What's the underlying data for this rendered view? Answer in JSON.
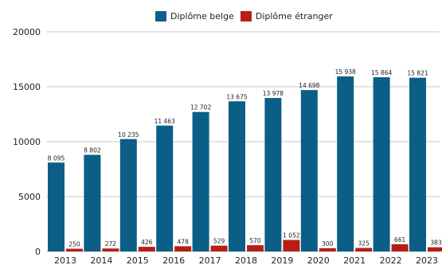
{
  "chart_data": {
    "type": "bar",
    "title": "",
    "xlabel": "",
    "ylabel": "",
    "ylim": [
      0,
      20000
    ],
    "y_ticks": [
      "0",
      "5000",
      "10000",
      "15000",
      "20000"
    ],
    "y_tick_values": [
      0,
      5000,
      10000,
      15000,
      20000
    ],
    "grid": true,
    "legend_position": "top",
    "categories": [
      "2013",
      "2014",
      "2015",
      "2016",
      "2017",
      "2018",
      "2019",
      "2020",
      "2021",
      "2022",
      "2023"
    ],
    "series": [
      {
        "name": "Diplôme belge",
        "color": "#0b5e86",
        "values": [
          8095,
          8802,
          10235,
          11463,
          12702,
          13675,
          13978,
          14698,
          15938,
          15864,
          15821
        ],
        "labels": [
          "8 095",
          "8 802",
          "10 235",
          "11 463",
          "12 702",
          "13 675",
          "13 978",
          "14 698",
          "15 938",
          "15 864",
          "15 821"
        ]
      },
      {
        "name": "Diplôme étranger",
        "color": "#b51f16",
        "values": [
          250,
          272,
          426,
          478,
          529,
          570,
          1052,
          300,
          325,
          661,
          383
        ],
        "labels": [
          "250",
          "272",
          "426",
          "478",
          "529",
          "570",
          "1 052",
          "300",
          "325",
          "661",
          "383"
        ]
      }
    ]
  }
}
